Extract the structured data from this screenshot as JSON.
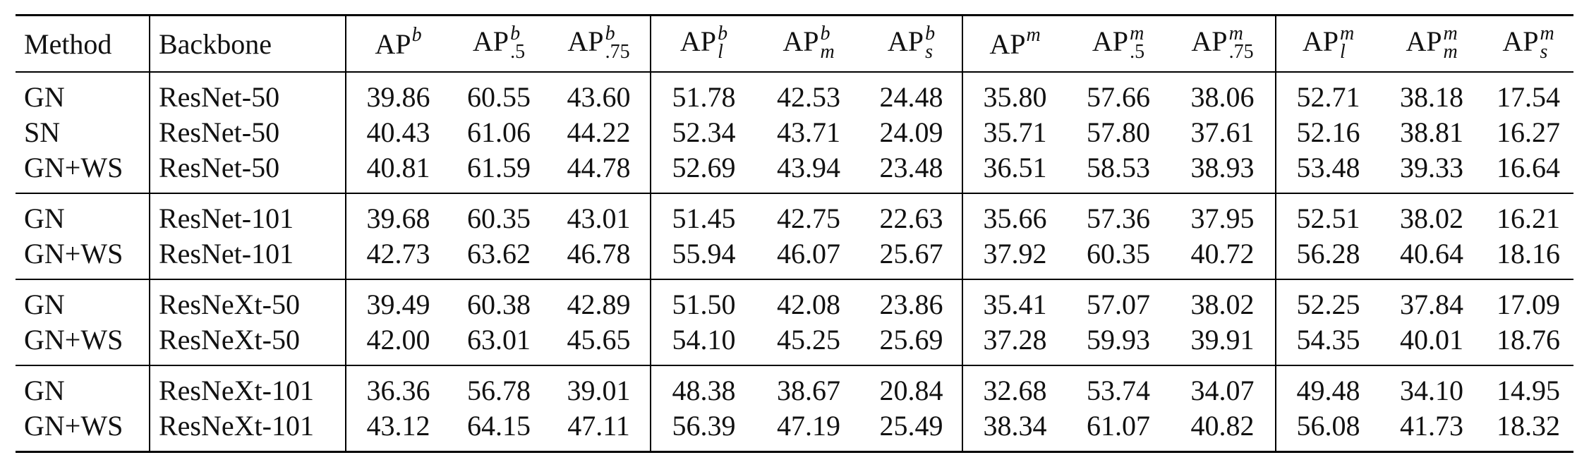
{
  "chart_data": {
    "type": "table",
    "columns": [
      {
        "key": "method",
        "label": "Method"
      },
      {
        "key": "backbone",
        "label": "Backbone"
      },
      {
        "key": "apb",
        "base": "AP",
        "sup": "b",
        "sub": ""
      },
      {
        "key": "apb50",
        "base": "AP",
        "sup": "b",
        "sub": ".5"
      },
      {
        "key": "apb75",
        "base": "AP",
        "sup": "b",
        "sub": ".75"
      },
      {
        "key": "apbl",
        "base": "AP",
        "sup": "b",
        "sub": "l"
      },
      {
        "key": "apbm",
        "base": "AP",
        "sup": "b",
        "sub": "m"
      },
      {
        "key": "apbs",
        "base": "AP",
        "sup": "b",
        "sub": "s"
      },
      {
        "key": "apm",
        "base": "AP",
        "sup": "m",
        "sub": ""
      },
      {
        "key": "apm50",
        "base": "AP",
        "sup": "m",
        "sub": ".5"
      },
      {
        "key": "apm75",
        "base": "AP",
        "sup": "m",
        "sub": ".75"
      },
      {
        "key": "apml",
        "base": "AP",
        "sup": "m",
        "sub": "l"
      },
      {
        "key": "apmm",
        "base": "AP",
        "sup": "m",
        "sub": "m"
      },
      {
        "key": "apms",
        "base": "AP",
        "sup": "m",
        "sub": "s"
      }
    ],
    "groups": [
      {
        "rows": [
          {
            "method": "GN",
            "backbone": "ResNet-50",
            "values": [
              "39.86",
              "60.55",
              "43.60",
              "51.78",
              "42.53",
              "24.48",
              "35.80",
              "57.66",
              "38.06",
              "52.71",
              "38.18",
              "17.54"
            ]
          },
          {
            "method": "SN",
            "backbone": "ResNet-50",
            "values": [
              "40.43",
              "61.06",
              "44.22",
              "52.34",
              "43.71",
              "24.09",
              "35.71",
              "57.80",
              "37.61",
              "52.16",
              "38.81",
              "16.27"
            ]
          },
          {
            "method": "GN+WS",
            "backbone": "ResNet-50",
            "values": [
              "40.81",
              "61.59",
              "44.78",
              "52.69",
              "43.94",
              "23.48",
              "36.51",
              "58.53",
              "38.93",
              "53.48",
              "39.33",
              "16.64"
            ]
          }
        ]
      },
      {
        "rows": [
          {
            "method": "GN",
            "backbone": "ResNet-101",
            "values": [
              "39.68",
              "60.35",
              "43.01",
              "51.45",
              "42.75",
              "22.63",
              "35.66",
              "57.36",
              "37.95",
              "52.51",
              "38.02",
              "16.21"
            ]
          },
          {
            "method": "GN+WS",
            "backbone": "ResNet-101",
            "values": [
              "42.73",
              "63.62",
              "46.78",
              "55.94",
              "46.07",
              "25.67",
              "37.92",
              "60.35",
              "40.72",
              "56.28",
              "40.64",
              "18.16"
            ]
          }
        ]
      },
      {
        "rows": [
          {
            "method": "GN",
            "backbone": "ResNeXt-50",
            "values": [
              "39.49",
              "60.38",
              "42.89",
              "51.50",
              "42.08",
              "23.86",
              "35.41",
              "57.07",
              "38.02",
              "52.25",
              "37.84",
              "17.09"
            ]
          },
          {
            "method": "GN+WS",
            "backbone": "ResNeXt-50",
            "values": [
              "42.00",
              "63.01",
              "45.65",
              "54.10",
              "45.25",
              "25.69",
              "37.28",
              "59.93",
              "39.91",
              "54.35",
              "40.01",
              "18.76"
            ]
          }
        ]
      },
      {
        "rows": [
          {
            "method": "GN",
            "backbone": "ResNeXt-101",
            "values": [
              "36.36",
              "56.78",
              "39.01",
              "48.38",
              "38.67",
              "20.84",
              "32.68",
              "53.74",
              "34.07",
              "49.48",
              "34.10",
              "14.95"
            ]
          },
          {
            "method": "GN+WS",
            "backbone": "ResNeXt-101",
            "values": [
              "43.12",
              "64.15",
              "47.11",
              "56.39",
              "47.19",
              "25.49",
              "38.34",
              "61.07",
              "40.82",
              "56.08",
              "41.73",
              "18.32"
            ]
          }
        ]
      }
    ]
  }
}
